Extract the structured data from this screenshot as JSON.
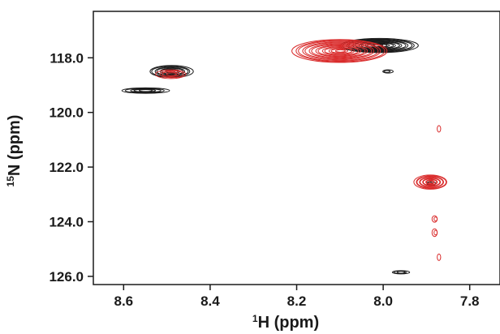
{
  "chart_data": {
    "type": "contour",
    "xlabel_sup": "1",
    "xlabel": "H (ppm)",
    "ylabel_sup": "15",
    "ylabel": "N (ppm)",
    "x_reversed": true,
    "y_reversed": true,
    "xlim": [
      8.67,
      7.73
    ],
    "ylim": [
      116.3,
      126.3
    ],
    "x_ticks": [
      {
        "value": 8.6,
        "label": "8.6"
      },
      {
        "value": 8.4,
        "label": "8.4"
      },
      {
        "value": 8.2,
        "label": "8.2"
      },
      {
        "value": 8.0,
        "label": "8.0"
      },
      {
        "value": 7.8,
        "label": "7.8"
      }
    ],
    "y_ticks": [
      {
        "value": 118.0,
        "label": "118.0"
      },
      {
        "value": 120.0,
        "label": "120.0"
      },
      {
        "value": 122.0,
        "label": "122.0"
      },
      {
        "value": 124.0,
        "label": "124.0"
      },
      {
        "value": 126.0,
        "label": "126.0"
      }
    ],
    "grid": false,
    "series": [
      {
        "color": "#1a1a1a",
        "peaks": [
          {
            "x": 8.49,
            "y": 118.5,
            "sx": 0.05,
            "sy": 0.22,
            "rings": 8
          },
          {
            "x": 8.55,
            "y": 119.2,
            "sx": 0.055,
            "sy": 0.1,
            "rings": 5
          },
          {
            "x": 8.01,
            "y": 117.55,
            "sx": 0.09,
            "sy": 0.26,
            "rings": 12
          },
          {
            "x": 7.99,
            "y": 118.5,
            "sx": 0.012,
            "sy": 0.06,
            "rings": 2
          },
          {
            "x": 7.89,
            "y": 122.6,
            "sx": 0.01,
            "sy": 0.08,
            "rings": 2
          },
          {
            "x": 7.96,
            "y": 125.85,
            "sx": 0.02,
            "sy": 0.06,
            "rings": 3
          }
        ]
      },
      {
        "color": "#d92a2a",
        "peaks": [
          {
            "x": 8.49,
            "y": 118.6,
            "sx": 0.035,
            "sy": 0.16,
            "rings": 4
          },
          {
            "x": 8.1,
            "y": 117.75,
            "sx": 0.11,
            "sy": 0.42,
            "rings": 14
          },
          {
            "x": 7.89,
            "y": 122.55,
            "sx": 0.038,
            "sy": 0.26,
            "rings": 10
          },
          {
            "x": 7.87,
            "y": 120.6,
            "sx": 0.004,
            "sy": 0.12,
            "rings": 1
          },
          {
            "x": 7.88,
            "y": 123.9,
            "sx": 0.006,
            "sy": 0.12,
            "rings": 2
          },
          {
            "x": 7.88,
            "y": 124.4,
            "sx": 0.006,
            "sy": 0.14,
            "rings": 2
          },
          {
            "x": 7.87,
            "y": 125.3,
            "sx": 0.004,
            "sy": 0.12,
            "rings": 1
          }
        ]
      }
    ]
  }
}
